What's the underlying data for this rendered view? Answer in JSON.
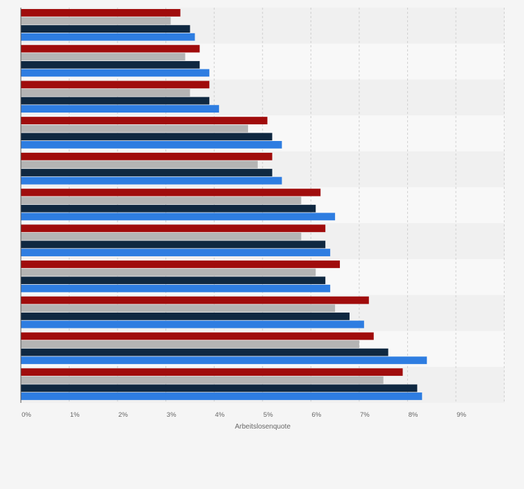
{
  "chart_data": {
    "type": "bar",
    "orientation": "horizontal",
    "xlabel": "Arbeitslosenquote",
    "xlim": [
      0,
      10
    ],
    "xticks": [
      0,
      1,
      2,
      3,
      4,
      5,
      6,
      7,
      8,
      9
    ],
    "xtick_labels": [
      "0%",
      "1%",
      "2%",
      "3%",
      "4%",
      "5%",
      "6%",
      "7%",
      "8%",
      "9%"
    ],
    "grid": true,
    "legend": "none",
    "category_count": 11,
    "series": [
      {
        "color": "#a00c0c",
        "values": [
          3.3,
          3.7,
          3.9,
          5.1,
          5.2,
          6.2,
          6.3,
          6.6,
          7.2,
          7.3,
          7.9
        ]
      },
      {
        "color": "#b4b4b4",
        "values": [
          3.1,
          3.4,
          3.5,
          4.7,
          4.9,
          5.8,
          5.8,
          6.1,
          6.5,
          7.0,
          7.5
        ]
      },
      {
        "color": "#0f2841",
        "values": [
          3.5,
          3.7,
          3.9,
          5.2,
          5.2,
          6.1,
          6.3,
          6.3,
          6.8,
          7.6,
          8.2
        ]
      },
      {
        "color": "#2e7de1",
        "values": [
          3.6,
          3.9,
          4.1,
          5.4,
          5.4,
          6.5,
          6.4,
          6.4,
          7.1,
          8.4,
          8.3
        ]
      }
    ]
  }
}
